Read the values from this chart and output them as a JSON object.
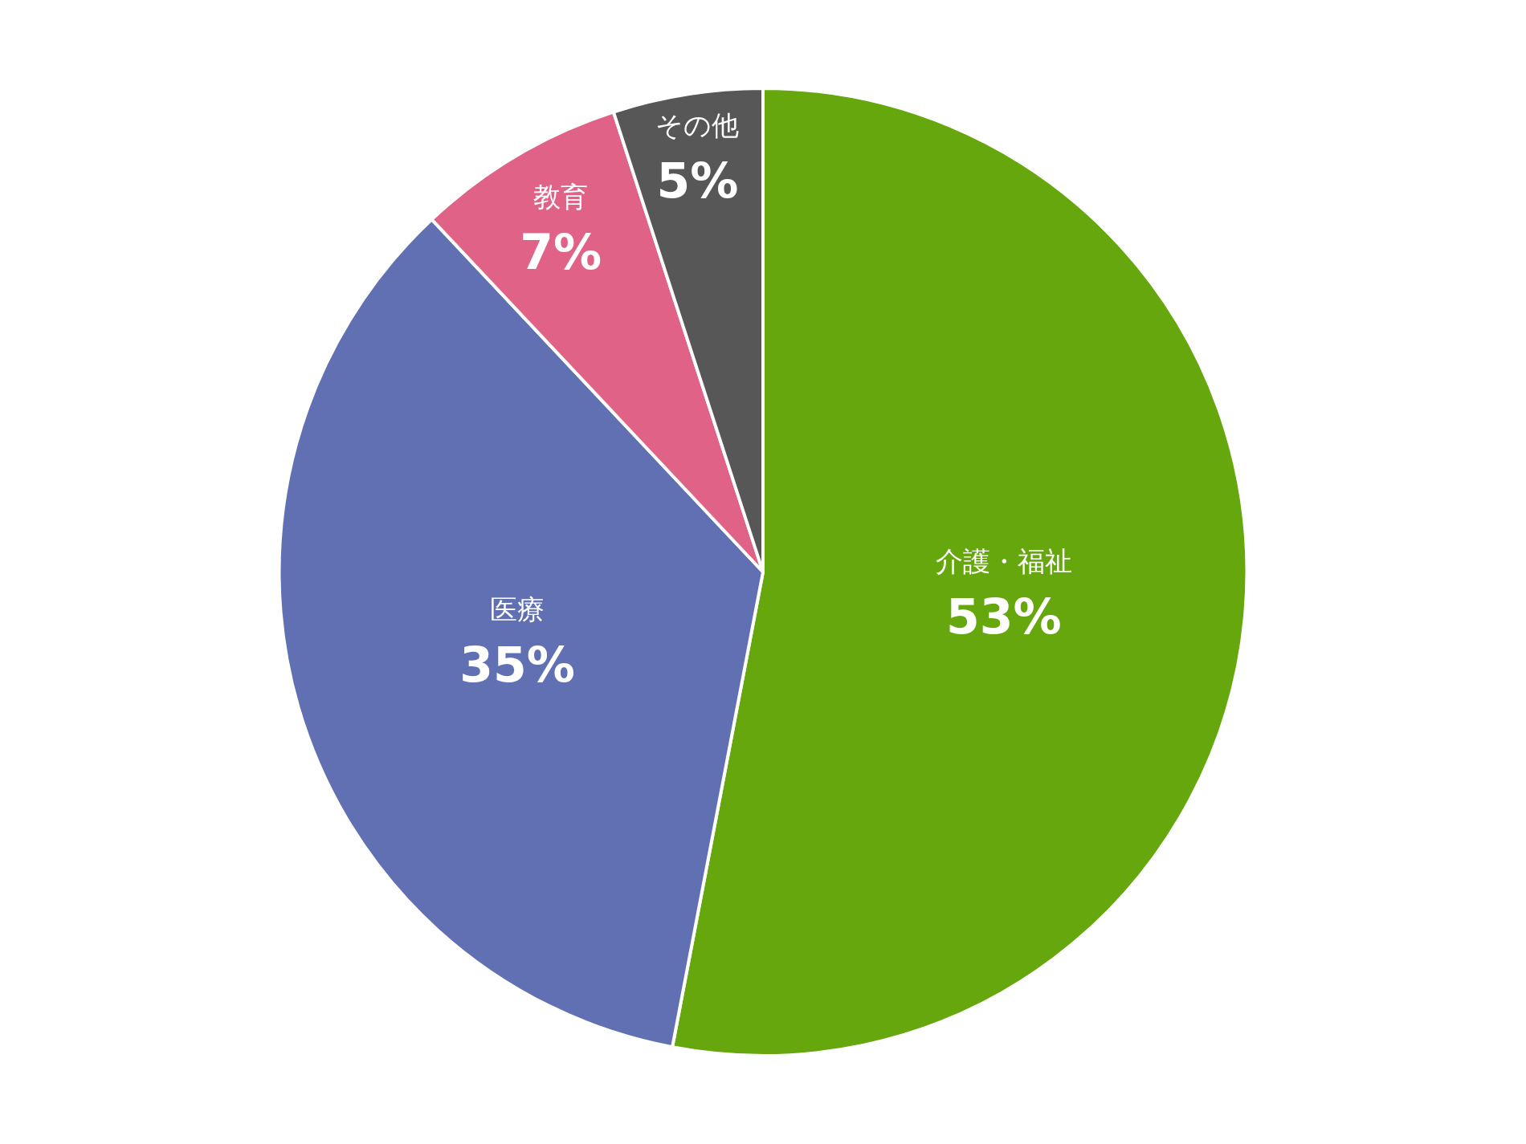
{
  "chart_data": {
    "type": "pie",
    "categories": [
      "介護・福祉",
      "医療",
      "教育",
      "その他"
    ],
    "values": [
      53,
      35,
      7,
      5
    ],
    "value_labels": [
      "53%",
      "35%",
      "7%",
      "5%"
    ],
    "colors": [
      "#65a70c",
      "#6070b2",
      "#e06286",
      "#575757"
    ],
    "legend": false
  }
}
